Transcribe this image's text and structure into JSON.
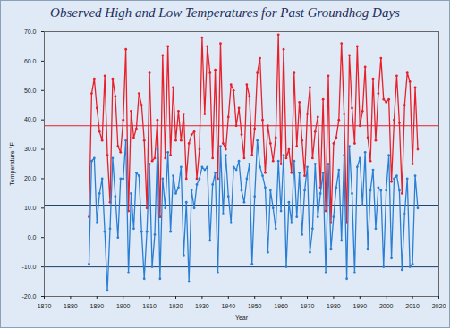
{
  "chart_data": {
    "type": "line",
    "title": "Observed High and Low Temperatures for Past Groundhog Days",
    "x_label": "Year",
    "y_label": "Temperature °F",
    "x": [
      1887,
      1888,
      1889,
      1890,
      1891,
      1892,
      1893,
      1894,
      1895,
      1896,
      1897,
      1898,
      1899,
      1900,
      1901,
      1902,
      1903,
      1904,
      1905,
      1906,
      1907,
      1908,
      1909,
      1910,
      1911,
      1912,
      1913,
      1914,
      1915,
      1916,
      1917,
      1918,
      1919,
      1920,
      1921,
      1922,
      1923,
      1924,
      1925,
      1926,
      1927,
      1928,
      1929,
      1930,
      1931,
      1932,
      1933,
      1934,
      1935,
      1936,
      1937,
      1938,
      1939,
      1940,
      1941,
      1942,
      1943,
      1944,
      1945,
      1946,
      1947,
      1948,
      1949,
      1950,
      1951,
      1952,
      1953,
      1954,
      1955,
      1956,
      1957,
      1958,
      1959,
      1960,
      1961,
      1962,
      1963,
      1964,
      1965,
      1966,
      1967,
      1968,
      1969,
      1970,
      1971,
      1972,
      1973,
      1974,
      1975,
      1976,
      1977,
      1978,
      1979,
      1980,
      1981,
      1982,
      1983,
      1984,
      1985,
      1986,
      1987,
      1988,
      1989,
      1990,
      1991,
      1992,
      1993,
      1994,
      1995,
      1996,
      1997,
      1998,
      1999,
      2000,
      2001,
      2002,
      2003,
      2004,
      2005,
      2006,
      2007,
      2008,
      2009,
      2010,
      2011,
      2012
    ],
    "series": [
      {
        "color": "#e8202a",
        "marker": "circle",
        "line_style": "solid",
        "values": [
          7,
          49,
          54,
          44,
          36,
          33,
          55,
          28,
          12,
          54,
          48,
          31,
          29,
          40,
          64,
          9,
          43,
          34,
          37,
          49,
          45,
          33,
          10,
          56,
          26,
          27,
          40,
          7,
          62,
          27,
          65,
          28,
          51,
          33,
          43,
          33,
          42,
          20,
          32,
          35,
          36,
          20,
          30,
          68,
          42,
          65,
          56,
          27,
          57,
          20,
          66,
          32,
          30,
          41,
          52,
          50,
          38,
          44,
          35,
          27,
          52,
          48,
          28,
          37,
          56,
          61,
          40,
          22,
          38,
          32,
          26,
          34,
          69,
          25,
          64,
          27,
          30,
          22,
          56,
          31,
          46,
          33,
          21,
          42,
          51,
          27,
          36,
          41,
          17,
          47,
          9,
          55,
          5,
          32,
          34,
          40,
          66,
          42,
          5,
          62,
          44,
          32,
          65,
          38,
          43,
          58,
          34,
          26,
          54,
          33,
          49,
          61,
          47,
          46,
          47,
          19,
          40,
          55,
          39,
          15,
          45,
          56,
          53,
          25,
          51,
          30
        ]
      },
      {
        "color": "#2a7fd4",
        "marker": "circle",
        "line_style": "solid",
        "values": [
          -9,
          26,
          27,
          5,
          15,
          20,
          2,
          -18,
          3,
          27,
          14,
          0,
          20,
          20,
          33,
          -12,
          15,
          3,
          22,
          21,
          2,
          -14,
          2,
          25,
          -10,
          1,
          30,
          -14,
          20,
          10,
          29,
          2,
          21,
          15,
          17,
          24,
          -6,
          12,
          -15,
          16,
          10,
          18,
          20,
          24,
          23,
          24,
          -1,
          18,
          22,
          -12,
          31,
          8,
          28,
          14,
          5,
          24,
          23,
          26,
          16,
          12,
          20,
          25,
          -9,
          14,
          33,
          24,
          21,
          17,
          -5,
          16,
          10,
          3,
          26,
          9,
          28,
          -10,
          12,
          5,
          26,
          7,
          22,
          1,
          16,
          24,
          -5,
          3,
          25,
          7,
          15,
          22,
          -12,
          25,
          -4,
          7,
          17,
          23,
          -1,
          28,
          -14,
          31,
          15,
          -12,
          24,
          27,
          11,
          29,
          -4,
          16,
          23,
          3,
          17,
          16,
          -10,
          16,
          28,
          -7,
          20,
          21,
          16,
          -11,
          8,
          20,
          -10,
          -9,
          21,
          10
        ]
      }
    ],
    "hlines": [
      {
        "value": 38,
        "color": "#e8202a"
      },
      {
        "value": 11,
        "color": "#1f3d6b"
      },
      {
        "value": -10,
        "color": "#1f3d6b"
      }
    ],
    "xlim": [
      1870,
      2020
    ],
    "xticks": [
      1870,
      1880,
      1890,
      1900,
      1910,
      1920,
      1930,
      1940,
      1950,
      1960,
      1970,
      1980,
      1990,
      2000,
      2010,
      2020
    ],
    "ylim": [
      -20,
      70
    ],
    "yticks": [
      {
        "value": -20,
        "label": "-20.0"
      },
      {
        "value": -10,
        "label": "-10.0"
      },
      {
        "value": 0,
        "label": "0.0"
      },
      {
        "value": 10,
        "label": "10.0"
      },
      {
        "value": 20,
        "label": "20.0"
      },
      {
        "value": 30,
        "label": "30.0"
      },
      {
        "value": 40,
        "label": "40.0"
      },
      {
        "value": 50,
        "label": "50.0"
      },
      {
        "value": 60,
        "label": "60.0"
      },
      {
        "value": 70,
        "label": "70.0"
      }
    ],
    "grid": false
  }
}
